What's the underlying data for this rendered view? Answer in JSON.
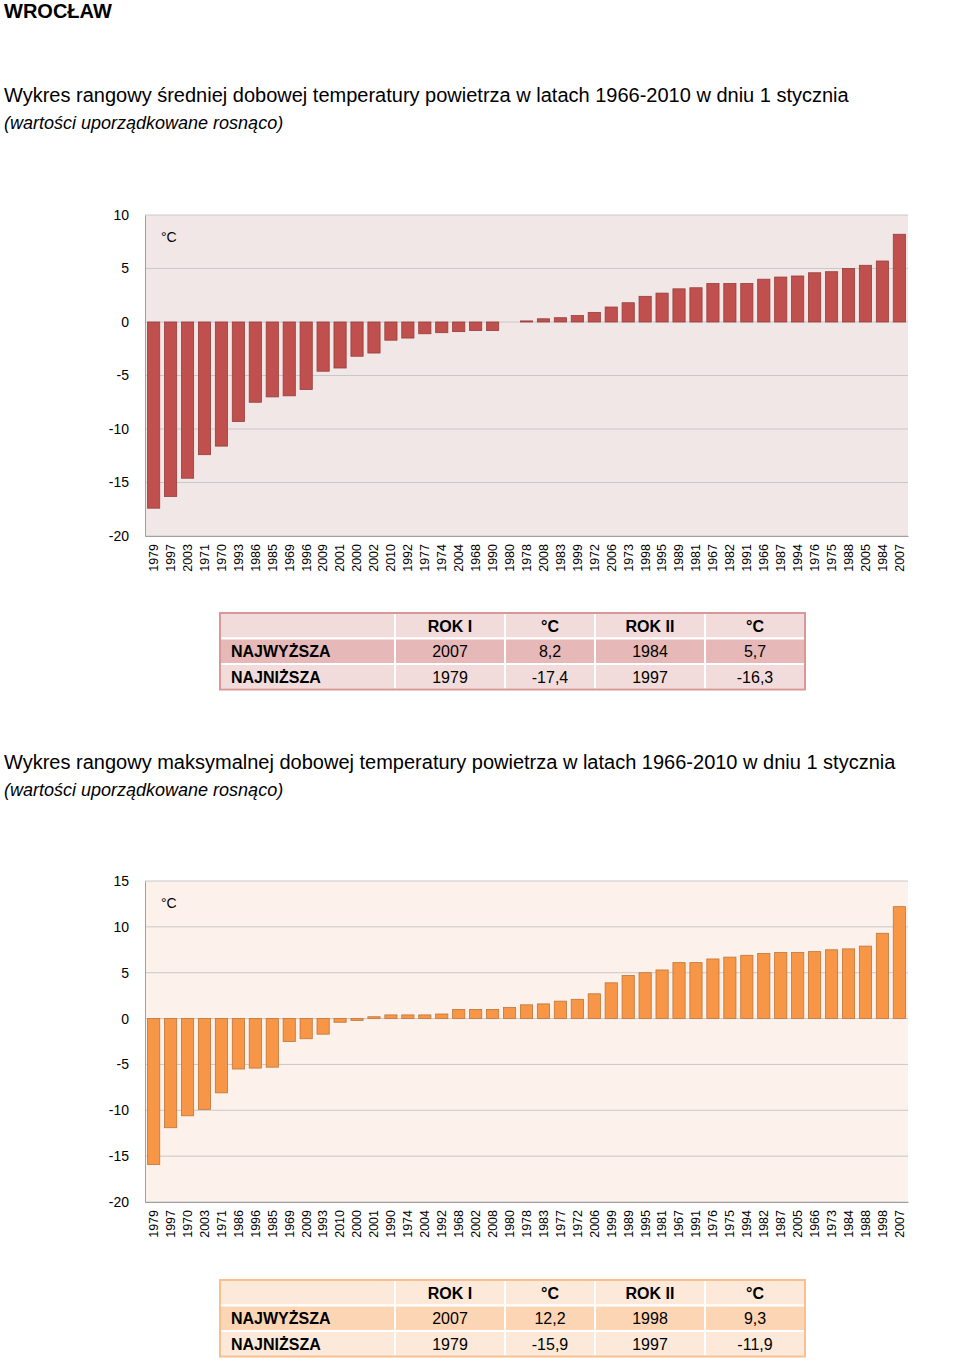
{
  "page_title": "WROCŁAW",
  "chart_data": [
    {
      "type": "bar",
      "title": "Wykres rangowy średniej dobowej temperatury powietrza w latach 1966-2010 w dniu 1 stycznia",
      "subtitle": "(wartości uporządkowane rosnąco)",
      "y_label": "°C",
      "categories": [
        "1979",
        "1997",
        "2003",
        "1971",
        "1970",
        "1993",
        "1986",
        "1985",
        "1969",
        "1996",
        "2009",
        "2001",
        "2000",
        "2002",
        "2010",
        "1992",
        "1977",
        "1974",
        "2004",
        "1968",
        "1990",
        "1980",
        "1978",
        "2008",
        "1983",
        "1999",
        "1972",
        "2006",
        "1973",
        "1998",
        "1995",
        "1989",
        "1981",
        "1967",
        "1982",
        "1991",
        "1966",
        "1987",
        "1994",
        "1976",
        "1975",
        "1988",
        "2005",
        "1984",
        "2007"
      ],
      "values": [
        -17.4,
        -16.3,
        -14.6,
        -12.4,
        -11.6,
        -9.3,
        -7.5,
        -7.0,
        -6.9,
        -6.3,
        -4.6,
        -4.3,
        -3.2,
        -2.9,
        -1.7,
        -1.5,
        -1.1,
        -1.0,
        -0.9,
        -0.8,
        -0.8,
        0.0,
        0.1,
        0.3,
        0.4,
        0.6,
        0.9,
        1.4,
        1.8,
        2.4,
        2.7,
        3.1,
        3.2,
        3.6,
        3.6,
        3.6,
        4.0,
        4.2,
        4.3,
        4.6,
        4.7,
        5.0,
        5.3,
        5.7,
        8.2
      ],
      "color": "#c0504d",
      "ylim": [
        -20,
        10
      ],
      "yticks": [
        -20,
        -15,
        -10,
        -5,
        0,
        5,
        10
      ],
      "grid": true,
      "table": {
        "header": [
          "ROK I",
          "°C",
          "ROK II",
          "°C"
        ],
        "rows": [
          {
            "label": "NAJWYŻSZA",
            "cells": [
              "2007",
              "8,2",
              "1984",
              "5,7"
            ]
          },
          {
            "label": "NAJNIŻSZA",
            "cells": [
              "1979",
              "-17,4",
              "1997",
              "-16,3"
            ]
          }
        ]
      }
    },
    {
      "type": "bar",
      "title": "Wykres rangowy maksymalnej dobowej temperatury powietrza w latach 1966-2010 w dniu 1 stycznia",
      "subtitle": "(wartości uporządkowane rosnąco)",
      "y_label": "°C",
      "categories": [
        "1979",
        "1997",
        "1970",
        "2003",
        "1971",
        "1986",
        "1996",
        "1985",
        "1969",
        "2009",
        "1993",
        "2010",
        "2000",
        "2001",
        "1990",
        "1974",
        "2004",
        "1992",
        "1968",
        "2002",
        "2008",
        "1980",
        "1978",
        "1983",
        "1977",
        "1972",
        "2006",
        "1999",
        "1989",
        "1995",
        "1981",
        "1967",
        "1991",
        "1976",
        "1975",
        "1994",
        "1982",
        "1987",
        "2005",
        "1966",
        "1973",
        "1984",
        "1988",
        "1998",
        "2007"
      ],
      "values": [
        -15.9,
        -11.9,
        -10.6,
        -9.9,
        -8.1,
        -5.5,
        -5.4,
        -5.3,
        -2.5,
        -2.2,
        -1.7,
        -0.4,
        -0.2,
        0.2,
        0.4,
        0.4,
        0.4,
        0.5,
        1.0,
        1.0,
        1.0,
        1.2,
        1.5,
        1.6,
        1.9,
        2.1,
        2.7,
        3.9,
        4.7,
        5.0,
        5.3,
        6.1,
        6.1,
        6.5,
        6.7,
        6.9,
        7.1,
        7.2,
        7.2,
        7.3,
        7.5,
        7.6,
        7.9,
        9.3,
        12.2
      ],
      "color": "#f79646",
      "ylim": [
        -20,
        15
      ],
      "yticks": [
        -20,
        -15,
        -10,
        -5,
        0,
        5,
        10,
        15
      ],
      "grid": true,
      "table": {
        "header": [
          "ROK I",
          "°C",
          "ROK II",
          "°C"
        ],
        "rows": [
          {
            "label": "NAJWYŻSZA",
            "cells": [
              "2007",
              "12,2",
              "1998",
              "9,3"
            ]
          },
          {
            "label": "NAJNIŻSZA",
            "cells": [
              "1979",
              "-15,9",
              "1997",
              "-11,9"
            ]
          }
        ]
      }
    }
  ]
}
